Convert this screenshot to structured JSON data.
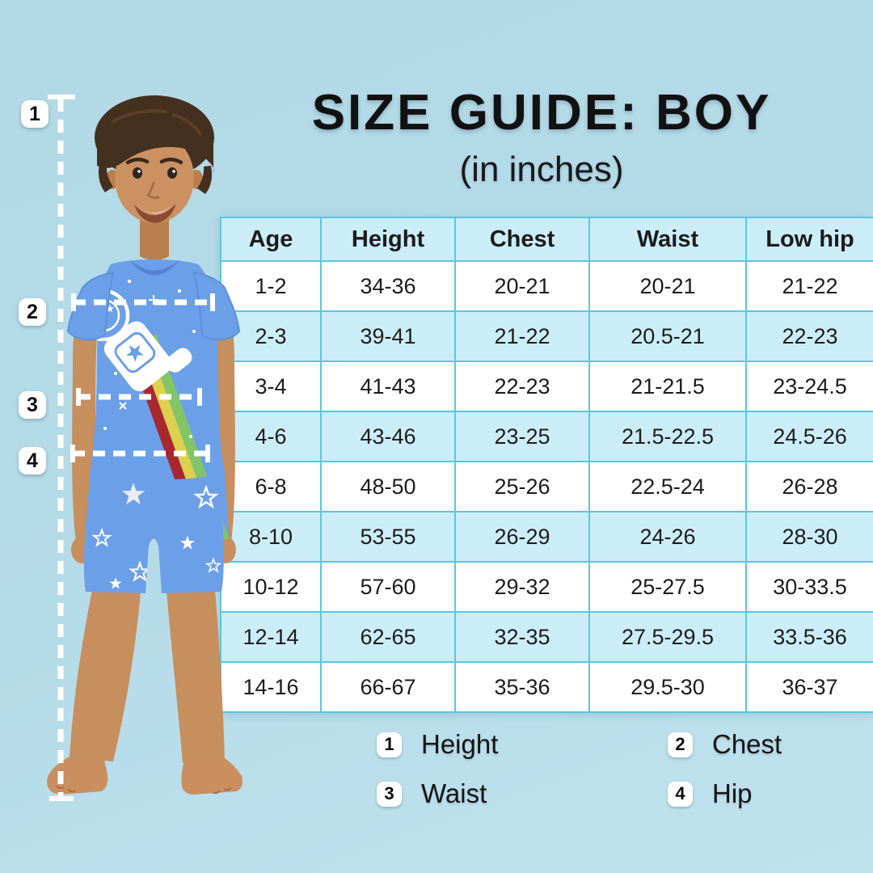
{
  "colors": {
    "background": "#b4d9e6",
    "table_border": "#5ac7de",
    "table_header_bg": "#cbedf8",
    "table_alt_row_bg": "#cbedf8",
    "table_row_bg": "#ffffff",
    "badge_bg": "#ffffff",
    "text": "#1c1c1c",
    "shirt_blue": "#6b9fe8",
    "rainbow_green": "#82c566",
    "rainbow_yellow": "#ddd04f",
    "rainbow_red": "#a82830"
  },
  "header": {
    "title": "SIZE GUIDE: BOY",
    "subtitle": "(in inches)"
  },
  "table": {
    "headers": [
      "Age",
      "Height",
      "Chest",
      "Waist",
      "Low hip"
    ],
    "rows": [
      [
        "1-2",
        "34-36",
        "20-21",
        "20-21",
        "21-22"
      ],
      [
        "2-3",
        "39-41",
        "21-22",
        "20.5-21",
        "22-23"
      ],
      [
        "3-4",
        "41-43",
        "22-23",
        "21-21.5",
        "23-24.5"
      ],
      [
        "4-6",
        "43-46",
        "23-25",
        "21.5-22.5",
        "24.5-26"
      ],
      [
        "6-8",
        "48-50",
        "25-26",
        "22.5-24",
        "26-28"
      ],
      [
        "8-10",
        "53-55",
        "26-29",
        "24-26",
        "28-30"
      ],
      [
        "10-12",
        "57-60",
        "29-32",
        "25-27.5",
        "30-33.5"
      ],
      [
        "12-14",
        "62-65",
        "32-35",
        "27.5-29.5",
        "33.5-36"
      ],
      [
        "14-16",
        "66-67",
        "35-36",
        "29.5-30",
        "36-37"
      ]
    ]
  },
  "markers": [
    {
      "number": "1",
      "label": "Height"
    },
    {
      "number": "2",
      "label": "Chest"
    },
    {
      "number": "3",
      "label": "Waist"
    },
    {
      "number": "4",
      "label": "Hip"
    }
  ],
  "chart_data": {
    "type": "table",
    "title": "SIZE GUIDE: BOY",
    "subtitle": "(in inches)",
    "units": "inches",
    "columns": [
      "Age",
      "Height",
      "Chest",
      "Waist",
      "Low hip"
    ],
    "rows": [
      [
        "1-2",
        "34-36",
        "20-21",
        "20-21",
        "21-22"
      ],
      [
        "2-3",
        "39-41",
        "21-22",
        "20.5-21",
        "22-23"
      ],
      [
        "3-4",
        "41-43",
        "22-23",
        "21-21.5",
        "23-24.5"
      ],
      [
        "4-6",
        "43-46",
        "23-25",
        "21.5-22.5",
        "24.5-26"
      ],
      [
        "6-8",
        "48-50",
        "25-26",
        "22.5-24",
        "26-28"
      ],
      [
        "8-10",
        "53-55",
        "26-29",
        "24-26",
        "28-30"
      ],
      [
        "10-12",
        "57-60",
        "29-32",
        "25-27.5",
        "30-33.5"
      ],
      [
        "12-14",
        "62-65",
        "32-35",
        "27.5-29.5",
        "33.5-36"
      ],
      [
        "14-16",
        "66-67",
        "35-36",
        "29.5-30",
        "36-37"
      ]
    ],
    "legend": [
      "1 Height",
      "2 Chest",
      "3 Waist",
      "4 Hip"
    ],
    "layout_hints": {
      "striped_rows": true,
      "header_position": "top",
      "markers_on_photo": [
        1,
        2,
        3,
        4
      ]
    }
  }
}
